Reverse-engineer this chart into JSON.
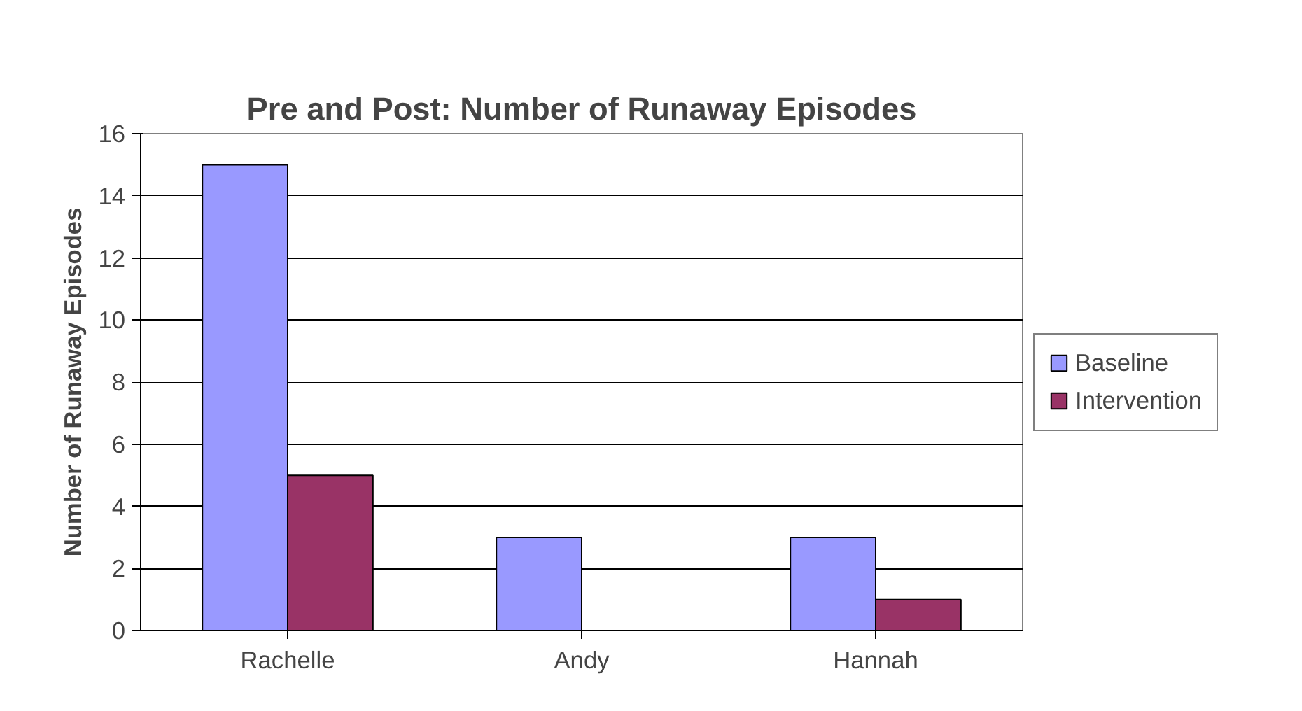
{
  "chart_data": {
    "type": "bar",
    "title": "Pre and Post: Number of Runaway Episodes",
    "ylabel": "Number of Runaway Episodes",
    "categories": [
      "Rachelle",
      "Andy",
      "Hannah"
    ],
    "series": [
      {
        "name": "Baseline",
        "color": "#9999ff",
        "values": [
          15,
          3,
          3
        ]
      },
      {
        "name": "Intervention",
        "color": "#993366",
        "values": [
          5,
          0,
          1
        ]
      }
    ],
    "ylim": [
      0,
      16
    ],
    "yticks": [
      0,
      2,
      4,
      6,
      8,
      10,
      12,
      14,
      16
    ],
    "grid": "y",
    "legend": "right"
  }
}
